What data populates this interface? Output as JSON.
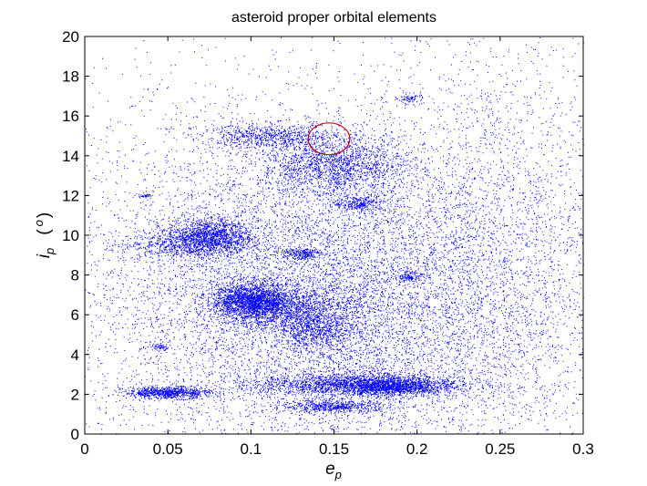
{
  "chart_data": {
    "type": "scatter",
    "title": "asteroid proper orbital elements",
    "xlabel": {
      "main": "e",
      "sub": "p"
    },
    "ylabel": {
      "main": "i",
      "sub": "p",
      "unit_open": "(",
      "unit_sup": "o",
      "unit_close": ")"
    },
    "xlim": [
      0,
      0.3
    ],
    "ylim": [
      0,
      20
    ],
    "xticks": [
      "0",
      "0.05",
      "0.1",
      "0.15",
      "0.2",
      "0.25",
      "0.3"
    ],
    "yticks": [
      "0",
      "2",
      "4",
      "6",
      "8",
      "10",
      "12",
      "14",
      "16",
      "18",
      "20"
    ],
    "grid": false,
    "point_color": "#0000ff",
    "series": [
      {
        "clusters": [
          {
            "e": 0.13,
            "i": 8.0,
            "se": 0.085,
            "si": 5.0,
            "n": 11000
          },
          {
            "e": 0.15,
            "i": 6.0,
            "se": 0.06,
            "si": 3.5,
            "n": 7000
          },
          {
            "e": 0.1,
            "i": 6.7,
            "se": 0.012,
            "si": 0.45,
            "n": 2200
          },
          {
            "e": 0.125,
            "i": 6.3,
            "se": 0.02,
            "si": 0.6,
            "n": 1200
          },
          {
            "e": 0.075,
            "i": 10.0,
            "se": 0.013,
            "si": 0.45,
            "n": 1400
          },
          {
            "e": 0.06,
            "i": 9.5,
            "se": 0.02,
            "si": 0.35,
            "n": 700
          },
          {
            "e": 0.15,
            "i": 13.5,
            "se": 0.022,
            "si": 0.8,
            "n": 1800
          },
          {
            "e": 0.165,
            "i": 11.6,
            "se": 0.008,
            "si": 0.2,
            "n": 300
          },
          {
            "e": 0.11,
            "i": 15.0,
            "se": 0.02,
            "si": 0.3,
            "n": 700
          },
          {
            "e": 0.165,
            "i": 2.5,
            "se": 0.03,
            "si": 0.3,
            "n": 2200
          },
          {
            "e": 0.186,
            "i": 2.4,
            "se": 0.014,
            "si": 0.2,
            "n": 900
          },
          {
            "e": 0.05,
            "i": 2.1,
            "se": 0.013,
            "si": 0.15,
            "n": 900
          },
          {
            "e": 0.15,
            "i": 1.4,
            "se": 0.016,
            "si": 0.15,
            "n": 600
          },
          {
            "e": 0.14,
            "i": 5.2,
            "se": 0.012,
            "si": 0.45,
            "n": 600
          },
          {
            "e": 0.13,
            "i": 9.1,
            "se": 0.006,
            "si": 0.15,
            "n": 250
          },
          {
            "e": 0.196,
            "i": 7.9,
            "se": 0.003,
            "si": 0.12,
            "n": 120
          },
          {
            "e": 0.196,
            "i": 16.9,
            "se": 0.004,
            "si": 0.12,
            "n": 80
          },
          {
            "e": 0.045,
            "i": 4.4,
            "se": 0.003,
            "si": 0.08,
            "n": 60
          },
          {
            "e": 0.036,
            "i": 12.0,
            "se": 0.002,
            "si": 0.06,
            "n": 40
          },
          {
            "e": 0.25,
            "i": 9.0,
            "se": 0.04,
            "si": 6.0,
            "n": 2500
          }
        ]
      }
    ],
    "annotation": {
      "shape": "ellipse",
      "color": "#cc0000",
      "center": {
        "e": 0.147,
        "i": 14.85
      },
      "radius": {
        "e": 0.0125,
        "i": 0.8
      }
    }
  }
}
